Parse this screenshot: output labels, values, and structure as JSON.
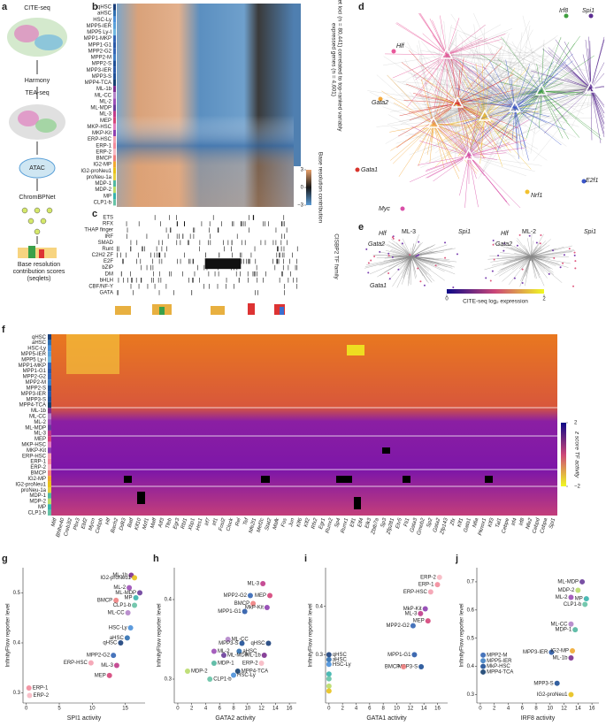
{
  "panel_letters": [
    "a",
    "b",
    "c",
    "d",
    "e",
    "f",
    "g",
    "h",
    "i",
    "j"
  ],
  "panel_a": {
    "steps": [
      "CITE-seq",
      "Harmony",
      "TEA-seq",
      "ATAC",
      "ChromBPNet",
      "Base resolution contribution scores (seqlets)"
    ]
  },
  "panel_b": {
    "rows": [
      "qHSC",
      "aHSC",
      "HSC-Ly",
      "MPP5-IER",
      "MPP5 Ly-I",
      "MPP1-MKP",
      "MPP1-G1",
      "MPP2-G2",
      "MPP2-M",
      "MPP2-S",
      "MPP3-IER",
      "MPP3-S",
      "MPP4-TCA",
      "ML-1b",
      "ML-CC",
      "ML-2",
      "ML-MDP",
      "ML-3",
      "MEP",
      "MKP-HSC",
      "MKP-Kit",
      "ERP-HSC",
      "ERP-1",
      "ERP-2",
      "BMCP",
      "IG2-MP",
      "IG2-proNeu1",
      "proNeu-1a",
      "MDP-1",
      "MDP-2",
      "MP",
      "CLP1-b"
    ],
    "axis_label": "Seqlet loci (n = 80,441) correlated to top-ranked variably expressed genes (n = 4,601)",
    "colorbar_label": "Base resolution contribution",
    "colorbar_ticks": [
      3,
      0,
      {
        "value": -3,
        "label": "−3"
      }
    ],
    "colorbar_lim": [
      -3,
      3
    ]
  },
  "panel_c": {
    "families": [
      "ETS",
      "RFX",
      "THAP finger",
      "IRF",
      "SMAD",
      "Runt",
      "C2H2 ZF",
      "E2F",
      "bZIP",
      "DM",
      "bHLH",
      "CBF/NF-Y",
      "GATA"
    ],
    "axis_label": "CISBP2 TF family"
  },
  "panel_d": {
    "genes": [
      "Hlf",
      "Gata2",
      "Irf8",
      "Spi1",
      "Gata1",
      "Myc",
      "Nrf1",
      "E2f1"
    ]
  },
  "panel_e": {
    "titles": [
      "ML-3",
      "ML-2"
    ],
    "genes_left": [
      "Hlf",
      "Gata2",
      "Spi1",
      "Gata1"
    ],
    "genes_right": [
      "Hlf",
      "Gata2",
      "Spi1"
    ],
    "colorbar_label": "CITE-seq log₂ expression",
    "colorbar_ticks": [
      0,
      2
    ],
    "colorbar_lim": [
      0,
      2
    ]
  },
  "panel_f": {
    "rows": [
      "qHSC",
      "aHSC",
      "HSC-Ly",
      "MPP5-IER",
      "MPP5 Ly-I",
      "MPP1-MKP",
      "MPP1-G1",
      "MPP2-G2",
      "MPP2-M",
      "MPP2-S",
      "MPP3-IER",
      "MPP3-S",
      "MPP4-TCA",
      "ML-1b",
      "ML-CC",
      "ML-2",
      "ML-MDP",
      "ML-3",
      "MEP",
      "MKP-HSC",
      "MKP-Kit",
      "ERP-HSC",
      "ERP-1",
      "ERP-2",
      "BMCP",
      "IG2-MP",
      "IG2-proNeu1",
      "proNeu-1a",
      "MDP-1",
      "MDP-2",
      "MP",
      "CLP1-b"
    ],
    "genes": [
      "Mitf",
      "Bhlhe40",
      "Creb3l2",
      "Pbx3",
      "Ebf2",
      "Mycn",
      "Cebpb",
      "Hlf",
      "Bach2",
      "Ddit3",
      "Batf",
      "Klf10",
      "Mzf1",
      "Maff",
      "Atf3",
      "Tfeb",
      "Egr3",
      "Rbl1",
      "Xbp1",
      "Hes1",
      "Irf7",
      "Irf1",
      "Fosl2",
      "Clock",
      "Rel",
      "Tef",
      "Nfe2l1",
      "Mef2c",
      "Stat2",
      "Mafk",
      "Fos",
      "Jun",
      "Klf6",
      "Klf2",
      "Rfx2",
      "Egr1",
      "Runx2",
      "Sp4",
      "Runx1",
      "Elf1",
      "Elf4",
      "Elk3",
      "Zbtb7a",
      "Sp3",
      "Zfp281",
      "Etv5",
      "Fli1",
      "Gata3",
      "Gmeb2",
      "Sp2",
      "Gata2",
      "Zfp143",
      "Zfx",
      "Klf1",
      "Gata1",
      "Nfia",
      "Pknox1",
      "Klf3",
      "Tal1",
      "Cebpe",
      "Irf4",
      "Irf8",
      "Nfe2",
      "Cebpd",
      "Cebpa",
      "Spi1"
    ],
    "colorbar_label": "z score TF activity",
    "colorbar_ticks": [
      {
        "value": -2,
        "label": "−2"
      },
      2
    ],
    "colorbar_lim": [
      -2,
      2
    ]
  },
  "chart_data": [
    {
      "type": "scatter",
      "x_label": "SPI1 activity",
      "y_label": "InfinityFlow reporter level",
      "xlim": [
        -0.5,
        18
      ],
      "ylim": [
        0.28,
        0.55
      ],
      "xticks": [
        0,
        5,
        10,
        15
      ],
      "yticks": [
        0.3,
        0.4,
        0.5
      ],
      "labels": [
        "ML-1b",
        "IG2-proNeu1",
        "ML-2",
        "ML-MDP",
        "BMCP",
        "MP",
        "CLP1-b",
        "ML-CC",
        "HSC-Ly",
        "aHSC",
        "qHSC",
        "MPP2-G2",
        "ERP-HSC",
        "ML-3",
        "MEP",
        "ERP-1",
        "ERP-2"
      ],
      "x": [
        15.9,
        16.4,
        15.6,
        17.2,
        13.6,
        16.6,
        16.4,
        15.4,
        15.8,
        15.3,
        14.3,
        13.2,
        9.8,
        13.7,
        12.6,
        0.4,
        0.5
      ],
      "values": [
        0.535,
        0.53,
        0.51,
        0.5,
        0.485,
        0.49,
        0.475,
        0.46,
        0.43,
        0.41,
        0.4,
        0.375,
        0.36,
        0.355,
        0.335,
        0.31,
        0.295
      ],
      "colors": [
        "#7b2d8e",
        "#e8c11a",
        "#9c4fb6",
        "#6a3d9a",
        "#f08080",
        "#38b2ac",
        "#66c2a5",
        "#b384c9",
        "#4a90d9",
        "#2f6fb0",
        "#1a3f7a",
        "#3466b5",
        "#f4a0b0",
        "#c03b8a",
        "#d5447a",
        "#f28b9b",
        "#f7b9c3"
      ]
    },
    {
      "type": "scatter",
      "x_label": "GATA2 activity",
      "y_label": "InfinityFlow reporter level",
      "xlim": [
        -0.5,
        17
      ],
      "ylim": [
        0.27,
        0.44
      ],
      "xticks": [
        0,
        2,
        4,
        6,
        8,
        10,
        12,
        14,
        16
      ],
      "yticks": [
        0.3,
        0.4
      ],
      "labels": [
        "ML-3",
        "MPP2-G2",
        "MEP",
        "BMCP",
        "MkP-Kit",
        "MPP1-G1",
        "ML-CC",
        "MPP3-S",
        "qHSC",
        "ML-2",
        "aHSC",
        "ML-MDP",
        "ML-1b",
        "MDP-1",
        "MPP4-TCA",
        "MDP-2",
        "HSC-Ly",
        "ERP-2",
        "CLP1-b"
      ],
      "x": [
        12.2,
        10.4,
        13.2,
        10.8,
        12.8,
        9.6,
        7.2,
        9.2,
        13.0,
        5.2,
        8.8,
        6.6,
        12.4,
        5.2,
        8.6,
        1.4,
        8.0,
        12.0,
        4.6
      ],
      "values": [
        0.42,
        0.405,
        0.405,
        0.395,
        0.39,
        0.385,
        0.35,
        0.345,
        0.345,
        0.335,
        0.335,
        0.33,
        0.33,
        0.32,
        0.31,
        0.31,
        0.305,
        0.32,
        0.3
      ],
      "colors": [
        "#c03b8a",
        "#3466b5",
        "#d5447a",
        "#f08080",
        "#8e3fb0",
        "#2a5aa8",
        "#b384c9",
        "#1e4f96",
        "#1a3f7a",
        "#9c4fb6",
        "#2f6fb0",
        "#6a3d9a",
        "#7b2d8e",
        "#52b7a0",
        "#16406f",
        "#b9dc6a",
        "#4a90d9",
        "#f7b9c3",
        "#66c2a5"
      ]
    },
    {
      "type": "scatter",
      "x_label": "GATA1 activity",
      "y_label": "InfinityFlow reporter level",
      "xlim": [
        -0.5,
        17.5
      ],
      "ylim": [
        0.2,
        0.48
      ],
      "xticks": [
        0,
        2,
        4,
        6,
        8,
        10,
        12,
        14,
        16
      ],
      "yticks": [
        0.3,
        0.4
      ],
      "labels": [
        "ERP-2",
        "ERP-1",
        "ERP-HSC",
        "MkP-Kit",
        "ML-3",
        "MEP",
        "MPP2-G2",
        "MPP1-G1",
        "MPP3-S",
        "BMCP",
        "qHSC",
        "aHSC",
        "HSC-Ly",
        null,
        null,
        null,
        null
      ],
      "x": [
        16.3,
        16.0,
        15.0,
        14.2,
        13.5,
        14.6,
        12.4,
        12.6,
        13.6,
        11.0,
        0,
        0,
        0,
        0,
        0,
        0,
        0
      ],
      "values": [
        0.46,
        0.445,
        0.43,
        0.395,
        0.385,
        0.37,
        0.36,
        0.3,
        0.275,
        0.275,
        0.3,
        0.29,
        0.28,
        0.26,
        0.25,
        0.235,
        0.225
      ],
      "colors": [
        "#f7b9c3",
        "#f28b9b",
        "#f4a0b0",
        "#8e3fb0",
        "#c03b8a",
        "#d5447a",
        "#3466b5",
        "#2a5aa8",
        "#1e4f96",
        "#f08080",
        "#1a3f7a",
        "#2f6fb0",
        "#4a90d9",
        "#38b2ac",
        "#66c2a5",
        "#b9dc6a",
        "#e8c11a"
      ]
    },
    {
      "type": "scatter",
      "x_label": "IRF8 activity",
      "y_label": "InfinityFlow reporter level",
      "xlim": [
        -0.5,
        17
      ],
      "ylim": [
        0.27,
        0.75
      ],
      "xticks": [
        0,
        2,
        4,
        6,
        8,
        10,
        12,
        14,
        16
      ],
      "yticks": [
        0.3,
        0.4,
        0.5,
        0.6,
        0.7
      ],
      "labels": [
        "ML-MDP",
        "MDP-2",
        "ML-2",
        "MP",
        "CLP1-b",
        "ML-CC",
        "MDP-1",
        "MPP3-IER",
        "IG2-MP",
        "ML-1b",
        "MPP2-M",
        "MPP5-IER",
        "MkP-HSC",
        "MPP4-TCA",
        "MPP3-S",
        "IG2-proNeu1"
      ],
      "x": [
        14.6,
        14.0,
        13.0,
        15.2,
        15.0,
        13.0,
        13.6,
        10.2,
        13.2,
        13.0,
        0.4,
        0.4,
        0.4,
        0.4,
        11.0,
        13.0
      ],
      "values": [
        0.7,
        0.67,
        0.645,
        0.64,
        0.62,
        0.55,
        0.53,
        0.45,
        0.455,
        0.43,
        0.44,
        0.42,
        0.4,
        0.38,
        0.34,
        0.3
      ],
      "colors": [
        "#6a3d9a",
        "#b9dc6a",
        "#9c4fb6",
        "#38b2ac",
        "#66c2a5",
        "#b384c9",
        "#52b7a0",
        "#2a5aa8",
        "#f0a830",
        "#7b2d8e",
        "#3466b5",
        "#3f7fc4",
        "#1e4f96",
        "#16406f",
        "#1e4f96",
        "#e8c11a"
      ]
    }
  ]
}
